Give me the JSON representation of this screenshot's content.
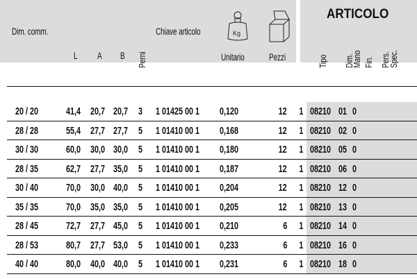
{
  "header": {
    "dim_comm": "Dim. comm.",
    "l": "L",
    "a": "A",
    "b": "B",
    "perni": "Perni",
    "chiave": "Chiave articolo",
    "unitario": "Unitario",
    "pezzi": "Pezzi",
    "articolo": "ARTICOLO",
    "tipo": "Tipo",
    "dim_mano": "Dim.\nMano",
    "dim": "Dim.",
    "mano": "Mano",
    "fin": "Fin.",
    "pers": "Pers.",
    "spec": "Spec.",
    "weight_icon_label": "Kg",
    "icons": [
      "weight-kg-icon",
      "open-box-icon"
    ]
  },
  "rows": [
    [
      "20 / 20",
      "41,4",
      "20,7",
      "20,7",
      "3",
      "1 01425 00 1",
      "0,120",
      "12",
      "1",
      "08210",
      "01",
      "0"
    ],
    [
      "28 / 28",
      "55,4",
      "27,7",
      "27,7",
      "5",
      "1 01410 00 1",
      "0,168",
      "12",
      "1",
      "08210",
      "02",
      "0"
    ],
    [
      "30 / 30",
      "60,0",
      "30,0",
      "30,0",
      "5",
      "1 01410 00 1",
      "0,180",
      "12",
      "1",
      "08210",
      "05",
      "0"
    ],
    [
      "28 / 35",
      "62,7",
      "27,7",
      "35,0",
      "5",
      "1 01410 00 1",
      "0,187",
      "12",
      "1",
      "08210",
      "06",
      "0"
    ],
    [
      "30 / 40",
      "70,0",
      "30,0",
      "40,0",
      "5",
      "1 01410 00 1",
      "0,204",
      "12",
      "1",
      "08210",
      "12",
      "0"
    ],
    [
      "35 / 35",
      "70,0",
      "35,0",
      "35,0",
      "5",
      "1 01410 00 1",
      "0,205",
      "12",
      "1",
      "08210",
      "13",
      "0"
    ],
    [
      "28 / 45",
      "72,7",
      "27,7",
      "45,0",
      "5",
      "1 01410 00 1",
      "0,210",
      "6",
      "1",
      "08210",
      "14",
      "0"
    ],
    [
      "28 / 53",
      "80,7",
      "27,7",
      "53,0",
      "5",
      "1 01410 00 1",
      "0,233",
      "6",
      "1",
      "08210",
      "16",
      "0"
    ],
    [
      "40 / 40",
      "80,0",
      "40,0",
      "40,0",
      "5",
      "1 01410 00 1",
      "0,231",
      "6",
      "1",
      "08210",
      "18",
      "0"
    ]
  ]
}
